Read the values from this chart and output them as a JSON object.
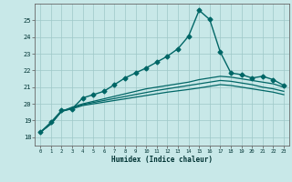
{
  "xlabel": "Humidex (Indice chaleur)",
  "ylabel": "",
  "xlim": [
    -0.5,
    23.5
  ],
  "ylim": [
    17.5,
    26.0
  ],
  "yticks": [
    18,
    19,
    20,
    21,
    22,
    23,
    24,
    25
  ],
  "xticks": [
    0,
    1,
    2,
    3,
    4,
    5,
    6,
    7,
    8,
    9,
    10,
    11,
    12,
    13,
    14,
    15,
    16,
    17,
    18,
    19,
    20,
    21,
    22,
    23
  ],
  "background_color": "#c8e8e8",
  "grid_color": "#9ec8c8",
  "line_color": "#006666",
  "lines": [
    {
      "x": [
        0,
        1,
        2,
        3,
        4,
        5,
        6,
        7,
        8,
        9,
        10,
        11,
        12,
        13,
        14,
        15,
        16,
        17,
        18,
        19,
        20,
        21,
        22,
        23
      ],
      "y": [
        18.3,
        18.9,
        19.6,
        19.7,
        20.35,
        20.55,
        20.75,
        21.15,
        21.55,
        21.85,
        22.15,
        22.5,
        22.85,
        23.3,
        24.05,
        25.6,
        25.05,
        23.1,
        21.85,
        21.75,
        21.55,
        21.65,
        21.45,
        21.1
      ],
      "marker": "D",
      "markersize": 2.5,
      "linewidth": 1.0,
      "color": "#006666"
    },
    {
      "x": [
        0,
        1,
        2,
        3,
        4,
        5,
        6,
        7,
        8,
        9,
        10,
        11,
        12,
        13,
        14,
        15,
        16,
        17,
        18,
        19,
        20,
        21,
        22,
        23
      ],
      "y": [
        18.3,
        18.8,
        19.55,
        19.8,
        20.0,
        20.15,
        20.3,
        20.45,
        20.6,
        20.75,
        20.9,
        21.0,
        21.1,
        21.2,
        21.3,
        21.45,
        21.55,
        21.65,
        21.6,
        21.5,
        21.4,
        21.3,
        21.2,
        21.0
      ],
      "marker": null,
      "markersize": 0,
      "linewidth": 0.9,
      "color": "#006666"
    },
    {
      "x": [
        0,
        1,
        2,
        3,
        4,
        5,
        6,
        7,
        8,
        9,
        10,
        11,
        12,
        13,
        14,
        15,
        16,
        17,
        18,
        19,
        20,
        21,
        22,
        23
      ],
      "y": [
        18.3,
        18.8,
        19.55,
        19.75,
        19.95,
        20.08,
        20.2,
        20.32,
        20.44,
        20.56,
        20.68,
        20.8,
        20.9,
        21.0,
        21.1,
        21.2,
        21.3,
        21.4,
        21.35,
        21.25,
        21.15,
        21.0,
        20.9,
        20.75
      ],
      "marker": null,
      "markersize": 0,
      "linewidth": 0.9,
      "color": "#006666"
    },
    {
      "x": [
        0,
        1,
        2,
        3,
        4,
        5,
        6,
        7,
        8,
        9,
        10,
        11,
        12,
        13,
        14,
        15,
        16,
        17,
        18,
        19,
        20,
        21,
        22,
        23
      ],
      "y": [
        18.3,
        18.8,
        19.55,
        19.7,
        19.9,
        20.0,
        20.1,
        20.2,
        20.3,
        20.4,
        20.5,
        20.6,
        20.7,
        20.78,
        20.86,
        20.95,
        21.05,
        21.15,
        21.1,
        21.0,
        20.9,
        20.8,
        20.7,
        20.55
      ],
      "marker": null,
      "markersize": 0,
      "linewidth": 0.9,
      "color": "#006666"
    }
  ]
}
